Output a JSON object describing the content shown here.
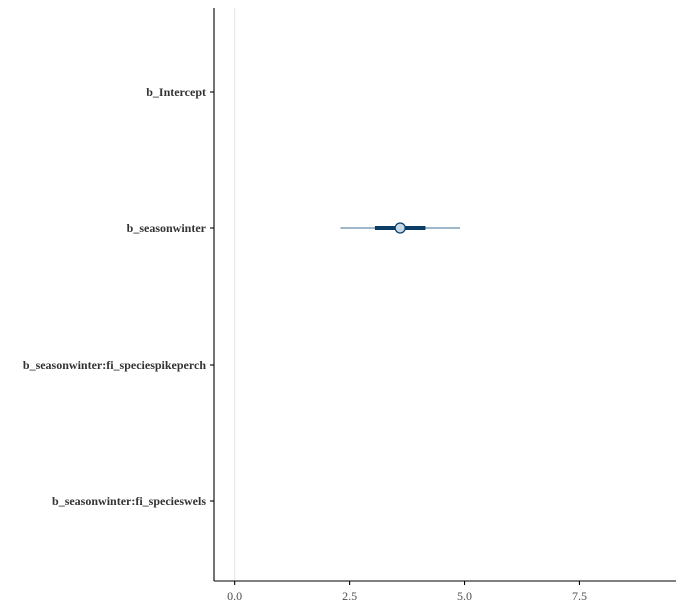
{
  "chart_data": {
    "type": "interval",
    "title": "",
    "xlabel": "",
    "ylabel": "",
    "xlim": [
      -0.45,
      9.6
    ],
    "x_ticks": [
      0.0,
      2.5,
      5.0,
      7.5
    ],
    "x_tick_labels": [
      "0.0",
      "2.5",
      "5.0",
      "7.5"
    ],
    "reference_line": 0,
    "grid": false,
    "categories": [
      "b_Intercept",
      "b_seasonwinter",
      "b_seasonwinter:fi_speciespikeperch",
      "b_seasonwinter:fi_specieswels"
    ],
    "estimates": [
      {
        "parameter": "b_seasonwinter",
        "point": 3.6,
        "inner": [
          3.05,
          4.15
        ],
        "outer": [
          2.3,
          4.9
        ]
      }
    ],
    "colors": {
      "interval_outer": "#3a6d96",
      "interval_inner": "#0b3c66",
      "point_fill": "#c6d9ea",
      "point_stroke": "#0b3c66",
      "reference_line": "#e6e6e6",
      "axis": "#000000"
    }
  }
}
